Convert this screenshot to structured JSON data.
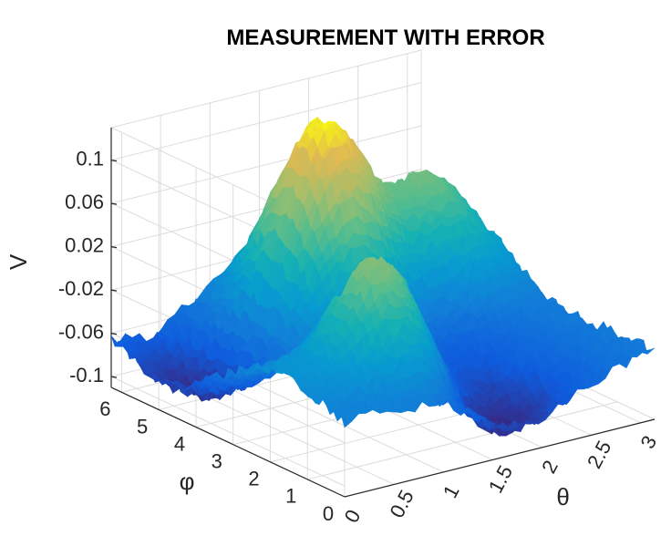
{
  "chart_data": {
    "type": "surface",
    "title": "MEASUREMENT WITH ERROR",
    "xlabel": "θ",
    "ylabel": "φ",
    "zlabel": "V",
    "x_ticks": [
      "0",
      "0.5",
      "1",
      "1.5",
      "2",
      "2.5",
      "3"
    ],
    "y_ticks": [
      "0",
      "1",
      "2",
      "3",
      "4",
      "5",
      "6"
    ],
    "z_ticks": [
      "-0.1",
      "-0.06",
      "-0.02",
      "0.02",
      "0.06",
      "0.1"
    ],
    "xlim": [
      0,
      3.14
    ],
    "ylim": [
      0,
      6.28
    ],
    "zlim": [
      -0.11,
      0.13
    ],
    "colormap": "parula",
    "grid": true,
    "peaks": [
      {
        "theta": 1.57,
        "phi": 4.7,
        "V": 0.125
      },
      {
        "theta": 1.0,
        "phi": 1.6,
        "V": 0.075
      },
      {
        "theta": 2.6,
        "phi": 4.7,
        "V": 0.05
      }
    ],
    "troughs": [
      {
        "theta": 0.3,
        "phi": 4.8,
        "V": -0.095
      },
      {
        "theta": 1.7,
        "phi": 0.8,
        "V": -0.1
      }
    ],
    "noise_amplitude": 0.006
  }
}
